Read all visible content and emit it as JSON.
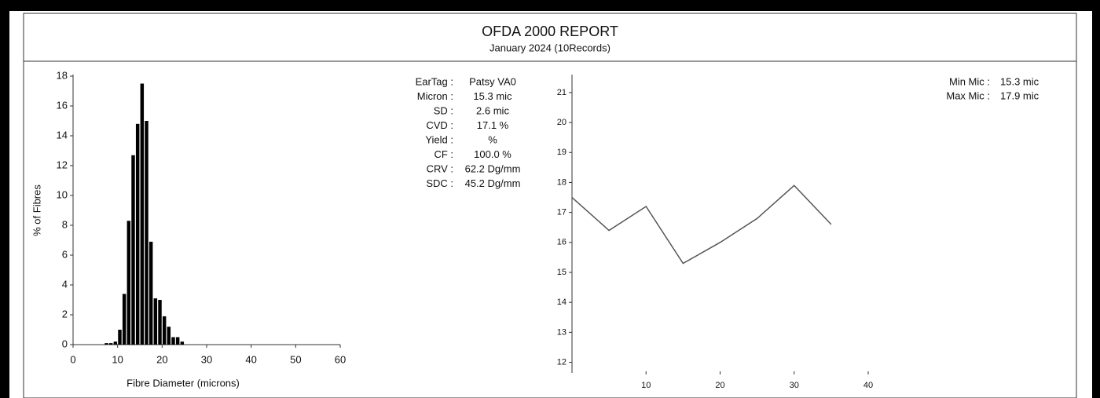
{
  "header": {
    "title": "OFDA 2000 REPORT",
    "subtitle": "January 2024 (10Records)"
  },
  "stats": [
    {
      "label": "EarTag :",
      "value": "Patsy VA0"
    },
    {
      "label": "Micron :",
      "value": "15.3 mic"
    },
    {
      "label": "SD :",
      "value": "2.6 mic"
    },
    {
      "label": "CVD :",
      "value": "17.1 %"
    },
    {
      "label": "Yield :",
      "value": "%"
    },
    {
      "label": "CF :",
      "value": "100.0 %"
    },
    {
      "label": "CRV :",
      "value": "62.2 Dg/mm"
    },
    {
      "label": "SDC :",
      "value": "45.2 Dg/mm"
    }
  ],
  "range": [
    {
      "label": "Min Mic :",
      "value": "15.3 mic"
    },
    {
      "label": "Max Mic :",
      "value": "17.9 mic"
    }
  ],
  "chart_data": [
    {
      "type": "histogram",
      "x_label": "Fibre Diameter (microns)",
      "y_label": "% of Fibres",
      "bins": [
        7,
        8,
        9,
        10,
        11,
        12,
        13,
        14,
        15,
        16,
        17,
        18,
        19,
        20,
        21,
        22,
        23,
        24,
        25
      ],
      "values": [
        0.1,
        0.1,
        0.2,
        1.0,
        3.4,
        8.3,
        12.7,
        14.8,
        17.5,
        15.0,
        6.9,
        3.1,
        3.0,
        1.9,
        1.2,
        0.5,
        0.5,
        0.2
      ],
      "color": "#000000",
      "xlim": [
        0,
        60
      ],
      "xticks": [
        0,
        10,
        20,
        30,
        40,
        50,
        60
      ],
      "ylim": [
        0,
        18
      ],
      "yticks": [
        0,
        2,
        4,
        6,
        8,
        10,
        12,
        14,
        16,
        18
      ]
    },
    {
      "type": "line",
      "x": [
        0,
        5,
        10,
        15,
        20,
        25,
        30,
        35
      ],
      "values": [
        17.5,
        16.4,
        17.2,
        15.3,
        16.0,
        16.8,
        17.9,
        16.6
      ],
      "color": "#555555",
      "xlim": [
        0,
        40
      ],
      "xticks": [
        10,
        20,
        30,
        40
      ],
      "ylim": [
        11.7,
        21.6
      ],
      "yticks": [
        12,
        13,
        14,
        15,
        16,
        17,
        18,
        19,
        20,
        21
      ]
    }
  ]
}
